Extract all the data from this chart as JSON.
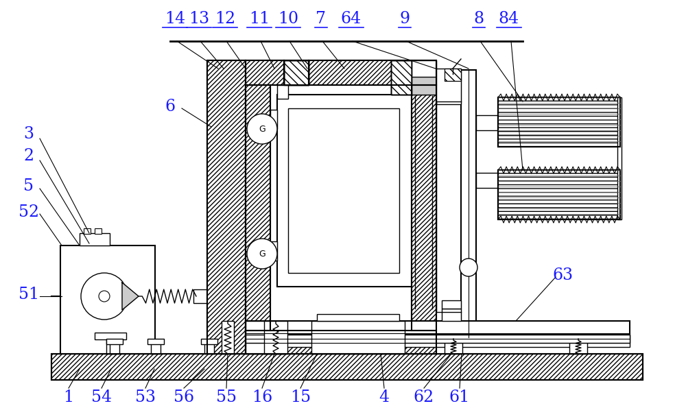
{
  "bg_color": "#ffffff",
  "line_color": "#000000",
  "label_color": "#1a1aff",
  "figsize": [
    10.0,
    6.11
  ],
  "dpi": 100,
  "label_fontsize": 17,
  "top_labels": [
    [
      "14",
      255,
      28
    ],
    [
      "13",
      290,
      28
    ],
    [
      "12",
      328,
      28
    ],
    [
      "11",
      378,
      28
    ],
    [
      "10",
      420,
      28
    ],
    [
      "7",
      468,
      28
    ],
    [
      "64",
      512,
      28
    ],
    [
      "9",
      590,
      28
    ],
    [
      "8",
      698,
      28
    ],
    [
      "84",
      742,
      28
    ]
  ],
  "left_labels": [
    [
      "3",
      42,
      195
    ],
    [
      "2",
      42,
      228
    ],
    [
      "5",
      42,
      272
    ],
    [
      "52",
      42,
      310
    ],
    [
      "51",
      42,
      430
    ],
    [
      "6",
      248,
      155
    ]
  ],
  "right_labels": [
    [
      "63",
      820,
      402
    ]
  ],
  "bottom_labels": [
    [
      "1",
      100,
      580
    ],
    [
      "54",
      148,
      580
    ],
    [
      "53",
      212,
      580
    ],
    [
      "56",
      268,
      580
    ],
    [
      "55",
      330,
      580
    ],
    [
      "16",
      382,
      580
    ],
    [
      "15",
      438,
      580
    ],
    [
      "4",
      560,
      580
    ],
    [
      "62",
      618,
      580
    ],
    [
      "61",
      670,
      580
    ]
  ]
}
